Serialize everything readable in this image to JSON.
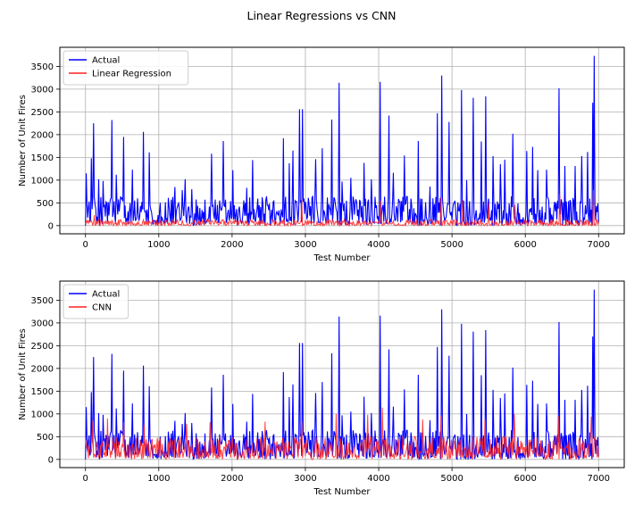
{
  "figure": {
    "title": "Linear Regressions vs CNN"
  },
  "chart_data": [
    {
      "type": "line",
      "title": "",
      "xlabel": "Test Number",
      "ylabel": "Number of Unit Fires",
      "xlim": [
        -350,
        7350
      ],
      "ylim": [
        -180,
        3920
      ],
      "xticks": [
        0,
        1000,
        2000,
        3000,
        4000,
        5000,
        6000,
        7000
      ],
      "yticks": [
        0,
        500,
        1000,
        1500,
        2000,
        2500,
        3000,
        3500
      ],
      "grid": true,
      "legend": "top-left",
      "series": [
        {
          "name": "Actual",
          "color": "#0000ff",
          "peaks": [
            [
              10,
              1150
            ],
            [
              80,
              1480
            ],
            [
              110,
              2250
            ],
            [
              180,
              1020
            ],
            [
              240,
              980
            ],
            [
              360,
              2320
            ],
            [
              420,
              1120
            ],
            [
              480,
              640
            ],
            [
              520,
              1950
            ],
            [
              640,
              1230
            ],
            [
              790,
              2060
            ],
            [
              870,
              1610
            ],
            [
              1220,
              850
            ],
            [
              1320,
              780
            ],
            [
              1360,
              1020
            ],
            [
              1450,
              800
            ],
            [
              1720,
              1580
            ],
            [
              1880,
              1860
            ],
            [
              2010,
              1220
            ],
            [
              2200,
              830
            ],
            [
              2280,
              1440
            ],
            [
              2420,
              490
            ],
            [
              2700,
              1920
            ],
            [
              2780,
              1370
            ],
            [
              2830,
              1650
            ],
            [
              2920,
              2560
            ],
            [
              2960,
              2560
            ],
            [
              3140,
              1460
            ],
            [
              3230,
              1700
            ],
            [
              3360,
              2330
            ],
            [
              3460,
              3140
            ],
            [
              3500,
              970
            ],
            [
              3620,
              1050
            ],
            [
              3800,
              1380
            ],
            [
              3900,
              1020
            ],
            [
              4020,
              3160
            ],
            [
              4140,
              2420
            ],
            [
              4200,
              1160
            ],
            [
              4350,
              1540
            ],
            [
              4540,
              1860
            ],
            [
              4700,
              860
            ],
            [
              4800,
              2470
            ],
            [
              4860,
              3300
            ],
            [
              4960,
              2280
            ],
            [
              5130,
              2980
            ],
            [
              5200,
              1000
            ],
            [
              5290,
              2810
            ],
            [
              5400,
              1850
            ],
            [
              5460,
              2840
            ],
            [
              5560,
              1530
            ],
            [
              5660,
              1350
            ],
            [
              5720,
              1450
            ],
            [
              5830,
              2020
            ],
            [
              6020,
              1640
            ],
            [
              6100,
              1730
            ],
            [
              6170,
              1220
            ],
            [
              6290,
              1230
            ],
            [
              6460,
              3020
            ],
            [
              6540,
              1310
            ],
            [
              6680,
              1310
            ],
            [
              6770,
              1530
            ],
            [
              6850,
              1620
            ],
            [
              6920,
              2700
            ],
            [
              6940,
              3730
            ]
          ]
        },
        {
          "name": "Linear Regression",
          "color": "#ff2020",
          "peaks": [
            [
              120,
              230
            ],
            [
              2950,
              580
            ],
            [
              4030,
              540
            ],
            [
              4850,
              620
            ],
            [
              5150,
              560
            ],
            [
              5500,
              500
            ],
            [
              5860,
              460
            ],
            [
              6470,
              690
            ],
            [
              6930,
              780
            ]
          ]
        }
      ]
    },
    {
      "type": "line",
      "title": "",
      "xlabel": "Test Number",
      "ylabel": "Number of Unit Fires",
      "xlim": [
        -350,
        7350
      ],
      "ylim": [
        -180,
        3920
      ],
      "xticks": [
        0,
        1000,
        2000,
        3000,
        4000,
        5000,
        6000,
        7000
      ],
      "yticks": [
        0,
        500,
        1000,
        1500,
        2000,
        2500,
        3000,
        3500
      ],
      "grid": true,
      "legend": "top-left",
      "series": [
        {
          "name": "Actual",
          "color": "#0000ff",
          "peaks": [
            [
              10,
              1150
            ],
            [
              80,
              1480
            ],
            [
              110,
              2250
            ],
            [
              180,
              1020
            ],
            [
              240,
              980
            ],
            [
              360,
              2320
            ],
            [
              420,
              1120
            ],
            [
              480,
              640
            ],
            [
              520,
              1950
            ],
            [
              640,
              1230
            ],
            [
              790,
              2060
            ],
            [
              870,
              1610
            ],
            [
              1220,
              850
            ],
            [
              1320,
              780
            ],
            [
              1360,
              1020
            ],
            [
              1450,
              800
            ],
            [
              1720,
              1580
            ],
            [
              1880,
              1860
            ],
            [
              2010,
              1220
            ],
            [
              2200,
              830
            ],
            [
              2280,
              1440
            ],
            [
              2420,
              490
            ],
            [
              2700,
              1920
            ],
            [
              2780,
              1370
            ],
            [
              2830,
              1650
            ],
            [
              2920,
              2560
            ],
            [
              2960,
              2560
            ],
            [
              3140,
              1460
            ],
            [
              3230,
              1700
            ],
            [
              3360,
              2330
            ],
            [
              3460,
              3140
            ],
            [
              3500,
              970
            ],
            [
              3620,
              1050
            ],
            [
              3800,
              1380
            ],
            [
              3900,
              1020
            ],
            [
              4020,
              3160
            ],
            [
              4140,
              2420
            ],
            [
              4200,
              1160
            ],
            [
              4350,
              1540
            ],
            [
              4540,
              1860
            ],
            [
              4700,
              860
            ],
            [
              4800,
              2470
            ],
            [
              4860,
              3300
            ],
            [
              4960,
              2280
            ],
            [
              5130,
              2980
            ],
            [
              5200,
              1000
            ],
            [
              5290,
              2810
            ],
            [
              5400,
              1850
            ],
            [
              5460,
              2840
            ],
            [
              5560,
              1530
            ],
            [
              5660,
              1350
            ],
            [
              5720,
              1450
            ],
            [
              5830,
              2020
            ],
            [
              6020,
              1640
            ],
            [
              6100,
              1730
            ],
            [
              6170,
              1220
            ],
            [
              6290,
              1230
            ],
            [
              6460,
              3020
            ],
            [
              6540,
              1310
            ],
            [
              6680,
              1310
            ],
            [
              6770,
              1530
            ],
            [
              6850,
              1620
            ],
            [
              6920,
              2700
            ],
            [
              6940,
              3730
            ]
          ]
        },
        {
          "name": "CNN",
          "color": "#ff2020",
          "peaks": [
            [
              100,
              850
            ],
            [
              300,
              900
            ],
            [
              520,
              820
            ],
            [
              800,
              760
            ],
            [
              1380,
              780
            ],
            [
              1700,
              820
            ],
            [
              2450,
              830
            ],
            [
              2950,
              820
            ],
            [
              3420,
              1000
            ],
            [
              3850,
              980
            ],
            [
              4050,
              1140
            ],
            [
              4600,
              880
            ],
            [
              4850,
              960
            ],
            [
              5450,
              880
            ],
            [
              5850,
              1000
            ],
            [
              6450,
              960
            ],
            [
              6900,
              940
            ]
          ]
        }
      ]
    }
  ]
}
